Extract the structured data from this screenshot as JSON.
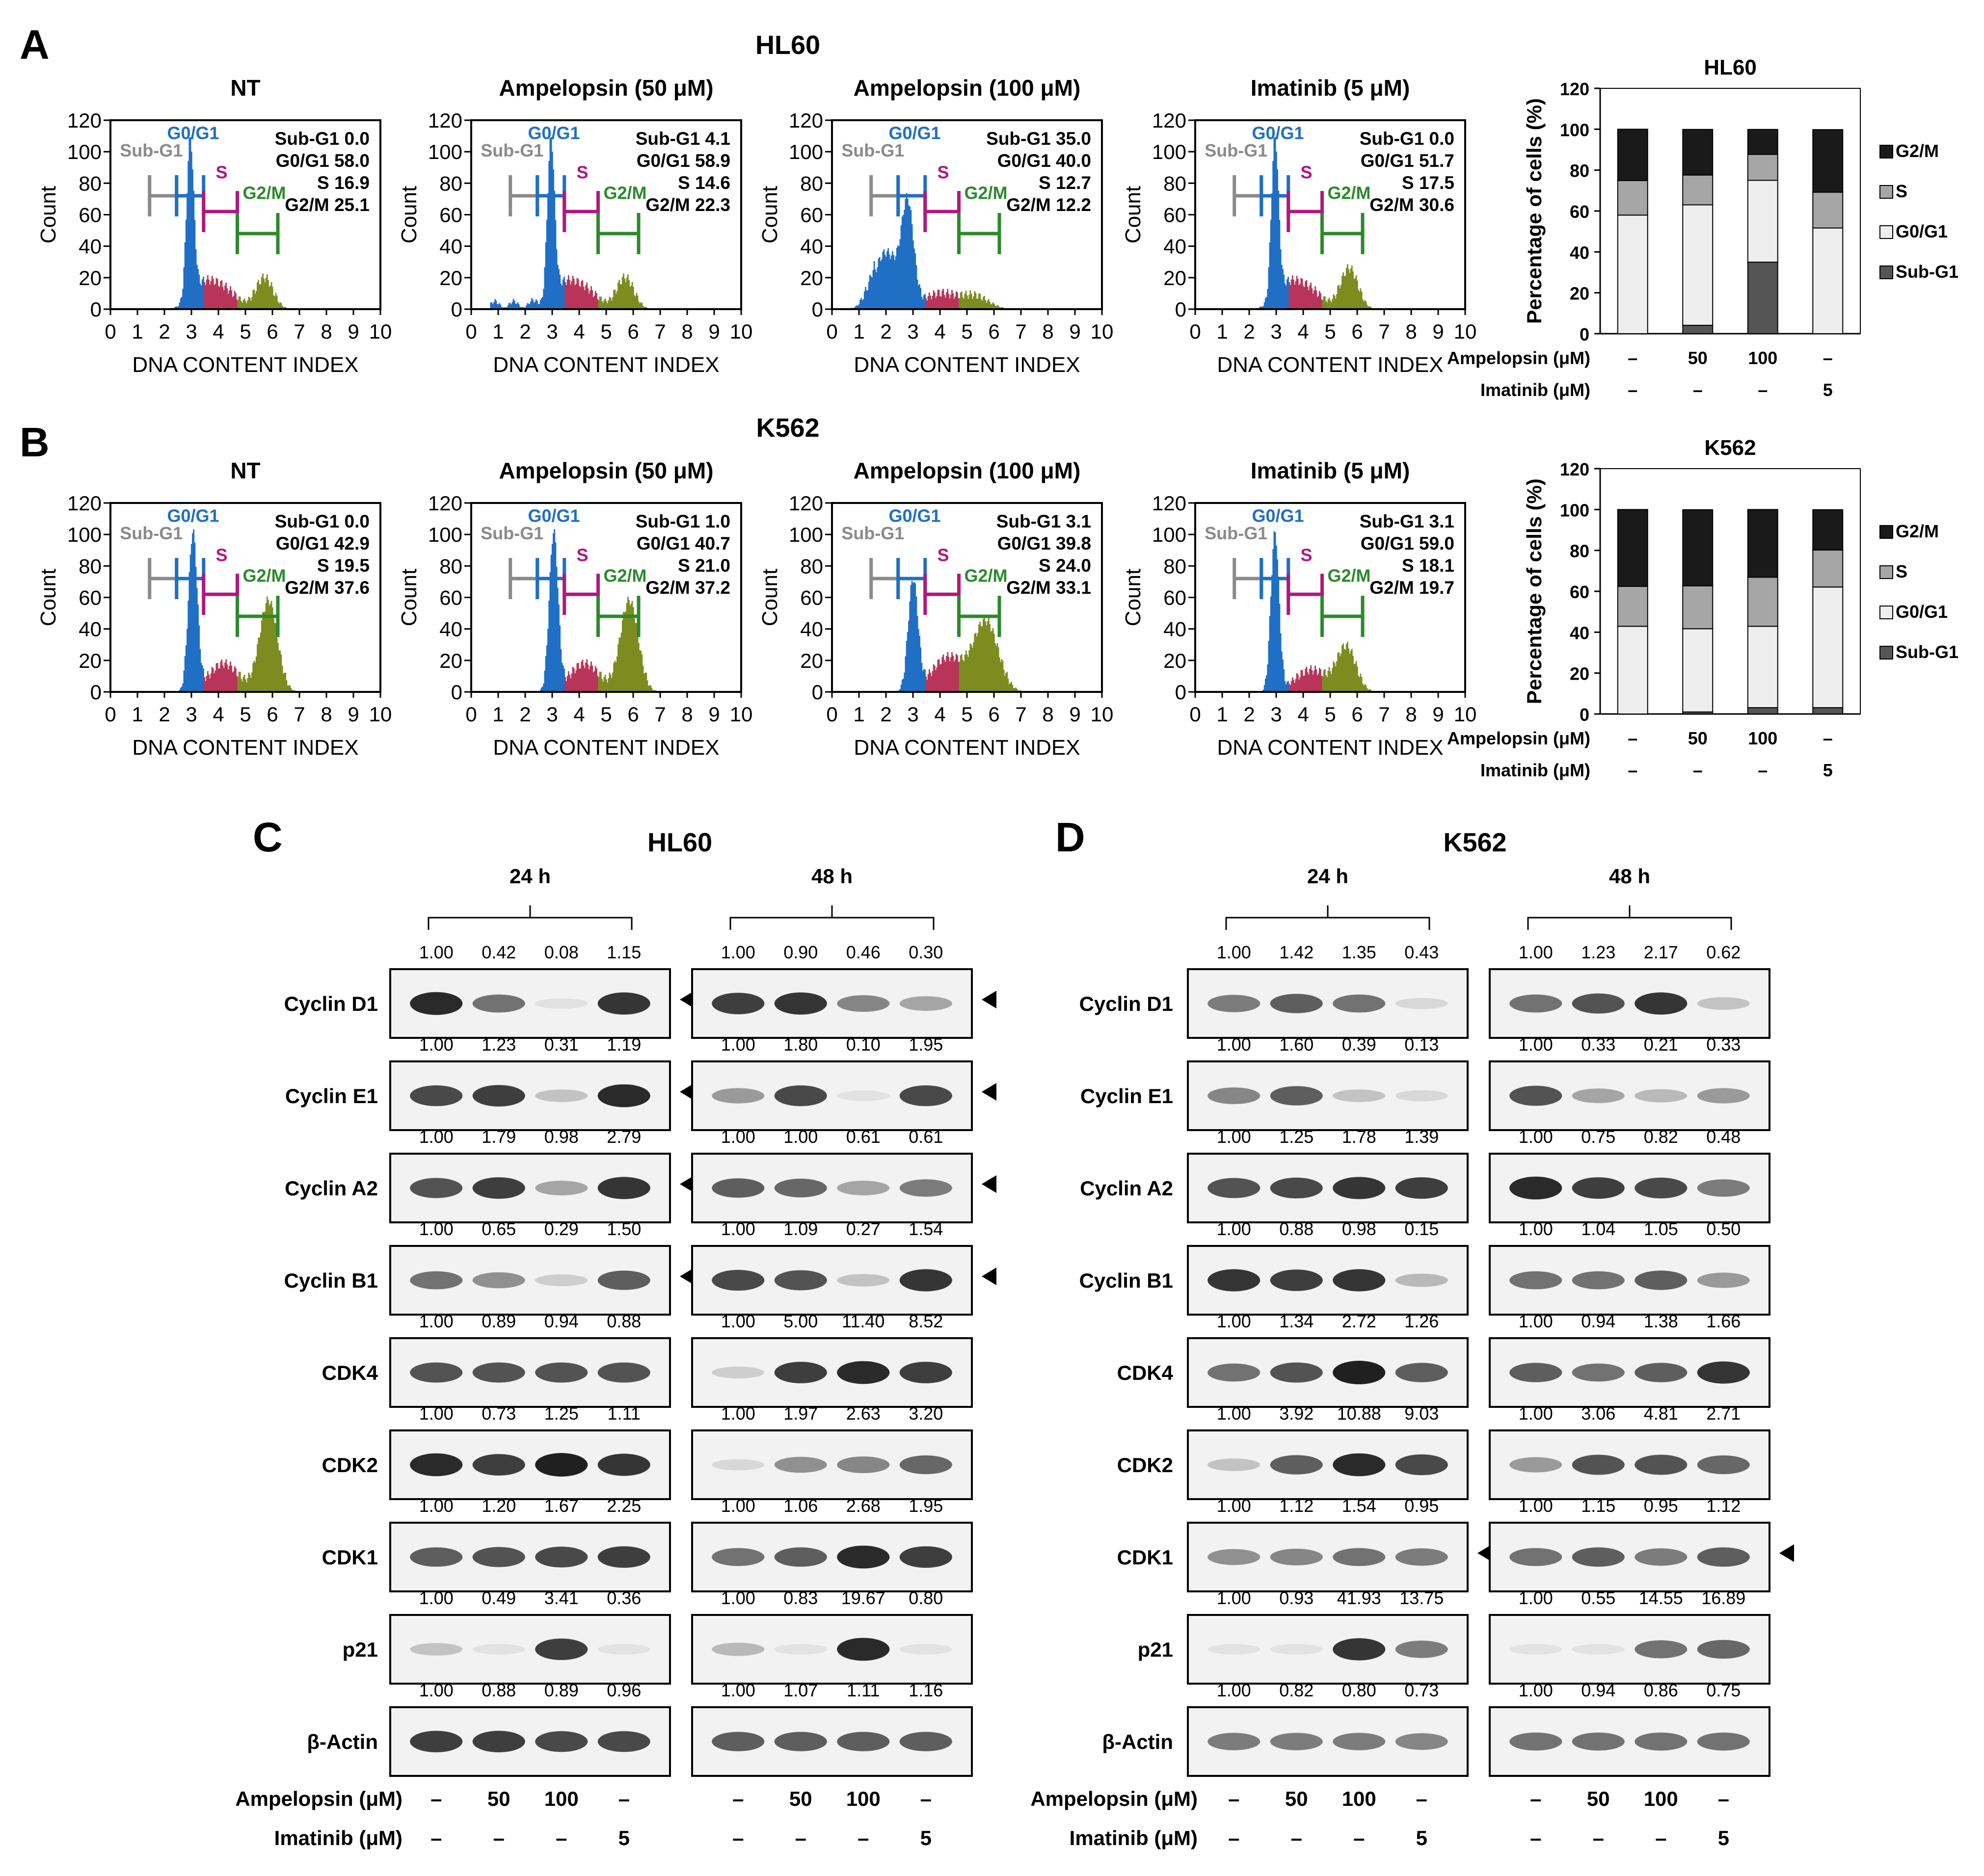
{
  "panel_letters": [
    "A",
    "B",
    "C",
    "D"
  ],
  "flow": {
    "rows": [
      {
        "cell_line": "HL60",
        "panels": [
          {
            "title": "NT",
            "stats": [
              "Sub-G1 0.0",
              "G0/G1 58.0",
              "S 16.9",
              "G2/M 25.1"
            ],
            "profile": "nt"
          },
          {
            "title": "Ampelopsin (50 μM)",
            "stats": [
              "Sub-G1 4.1",
              "G0/G1 58.9",
              "S 14.6",
              "G2/M 22.3"
            ],
            "profile": "amp50"
          },
          {
            "title": "Ampelopsin (100 μM)",
            "stats": [
              "Sub-G1 35.0",
              "G0/G1 40.0",
              "S 12.7",
              "G2/M 12.2"
            ],
            "profile": "amp100"
          },
          {
            "title": "Imatinib (5 μM)",
            "stats": [
              "Sub-G1 0.0",
              "G0/G1 51.7",
              "S 17.5",
              "G2/M 30.6"
            ],
            "profile": "ima"
          }
        ]
      },
      {
        "cell_line": "K562",
        "panels": [
          {
            "title": "NT",
            "stats": [
              "Sub-G1 0.0",
              "G0/G1 42.9",
              "S 19.5",
              "G2/M 37.6"
            ],
            "profile": "k_nt"
          },
          {
            "title": "Ampelopsin (50 μM)",
            "stats": [
              "Sub-G1 1.0",
              "G0/G1 40.7",
              "S 21.0",
              "G2/M 37.2"
            ],
            "profile": "k_nt"
          },
          {
            "title": "Ampelopsin (100 μM)",
            "stats": [
              "Sub-G1 3.1",
              "G0/G1 39.8",
              "S 24.0",
              "G2/M 33.1"
            ],
            "profile": "k_100"
          },
          {
            "title": "Imatinib (5 μM)",
            "stats": [
              "Sub-G1 3.1",
              "G0/G1 59.0",
              "S 18.1",
              "G2/M 19.7"
            ],
            "profile": "k_ima"
          }
        ]
      }
    ],
    "gate_labels": {
      "subg1": "Sub-G1",
      "g0g1": "G0/G1",
      "s": "S",
      "g2m": "G2/M"
    },
    "xlabel": "DNA CONTENT INDEX",
    "ylabel": "Count",
    "xticks": [
      "0",
      "1",
      "2",
      "3",
      "4",
      "5",
      "6",
      "7",
      "8",
      "9",
      "10"
    ],
    "yticks": [
      "0",
      "20",
      "40",
      "60",
      "80",
      "100",
      "120"
    ],
    "colors": {
      "g0g1": "#1f6fc5",
      "s": "#b8345a",
      "g2m": "#7d8c1e",
      "subg1": "#1f6fc5",
      "gate_sub": "#8a8a8a",
      "gate_g0": "#1f6fc5",
      "gate_s": "#b0187e",
      "gate_g2": "#2b8a2b"
    }
  },
  "chart_data": [
    {
      "type": "bar",
      "stacked": true,
      "title": "HL60",
      "ylabel": "Percentage of cells (%)",
      "ylim": [
        0,
        120
      ],
      "yticks": [
        "0",
        "20",
        "40",
        "60",
        "80",
        "100",
        "120"
      ],
      "categories": [
        "NT",
        "Ampelopsin 50",
        "Ampelopsin 100",
        "Imatinib 5"
      ],
      "series": [
        {
          "name": "Sub-G1",
          "values": [
            0.0,
            4.1,
            35.0,
            0.0
          ]
        },
        {
          "name": "G0/G1",
          "values": [
            58.0,
            58.9,
            40.0,
            51.7
          ]
        },
        {
          "name": "S",
          "values": [
            16.9,
            14.6,
            12.7,
            17.5
          ]
        },
        {
          "name": "G2/M",
          "values": [
            25.1,
            22.3,
            12.2,
            30.6
          ]
        }
      ],
      "legend": [
        "G2/M",
        "S",
        "G0/G1",
        "Sub-G1"
      ],
      "treatment_rows": [
        {
          "label": "Ampelopsin (μM)",
          "values": [
            "–",
            "50",
            "100",
            "–"
          ]
        },
        {
          "label": "Imatinib (μM)",
          "values": [
            "–",
            "–",
            "–",
            "5"
          ]
        }
      ]
    },
    {
      "type": "bar",
      "stacked": true,
      "title": "K562",
      "ylabel": "Percentage of cells (%)",
      "ylim": [
        0,
        120
      ],
      "yticks": [
        "0",
        "20",
        "40",
        "60",
        "80",
        "100",
        "120"
      ],
      "categories": [
        "NT",
        "Ampelopsin 50",
        "Ampelopsin 100",
        "Imatinib 5"
      ],
      "series": [
        {
          "name": "Sub-G1",
          "values": [
            0.0,
            1.0,
            3.1,
            3.1
          ]
        },
        {
          "name": "G0/G1",
          "values": [
            42.9,
            40.7,
            39.8,
            59.0
          ]
        },
        {
          "name": "S",
          "values": [
            19.5,
            21.0,
            24.0,
            18.1
          ]
        },
        {
          "name": "G2/M",
          "values": [
            37.6,
            37.2,
            33.1,
            19.7
          ]
        }
      ],
      "legend": [
        "G2/M",
        "S",
        "G0/G1",
        "Sub-G1"
      ],
      "treatment_rows": [
        {
          "label": "Ampelopsin (μM)",
          "values": [
            "–",
            "50",
            "100",
            "–"
          ]
        },
        {
          "label": "Imatinib (μM)",
          "values": [
            "–",
            "–",
            "–",
            "5"
          ]
        }
      ]
    }
  ],
  "blots": [
    {
      "cell_line": "HL60",
      "time_labels": [
        "24 h",
        "48 h"
      ],
      "proteins": [
        "Cyclin D1",
        "Cyclin E1",
        "Cyclin A2",
        "Cyclin B1",
        "CDK4",
        "CDK2",
        "CDK1",
        "p21",
        "β-Actin"
      ],
      "values_24": [
        [
          "1.00",
          "0.42",
          "0.08",
          "1.15"
        ],
        [
          "1.00",
          "1.23",
          "0.31",
          "1.19"
        ],
        [
          "1.00",
          "1.79",
          "0.98",
          "2.79"
        ],
        [
          "1.00",
          "0.65",
          "0.29",
          "1.50"
        ],
        [
          "1.00",
          "0.89",
          "0.94",
          "0.88"
        ],
        [
          "1.00",
          "0.73",
          "1.25",
          "1.11"
        ],
        [
          "1.00",
          "1.20",
          "1.67",
          "2.25"
        ],
        [
          "1.00",
          "0.49",
          "3.41",
          "0.36"
        ],
        [
          "1.00",
          "0.88",
          "0.89",
          "0.96"
        ]
      ],
      "values_48": [
        [
          "1.00",
          "0.90",
          "0.46",
          "0.30"
        ],
        [
          "1.00",
          "1.80",
          "0.10",
          "1.95"
        ],
        [
          "1.00",
          "1.00",
          "0.61",
          "0.61"
        ],
        [
          "1.00",
          "1.09",
          "0.27",
          "1.54"
        ],
        [
          "1.00",
          "5.00",
          "11.40",
          "8.52"
        ],
        [
          "1.00",
          "1.97",
          "2.63",
          "3.20"
        ],
        [
          "1.00",
          "1.06",
          "2.68",
          "1.95"
        ],
        [
          "1.00",
          "0.83",
          "19.67",
          "0.80"
        ],
        [
          "1.00",
          "1.07",
          "1.11",
          "1.16"
        ]
      ],
      "band_intensity_24": [
        [
          0.95,
          0.6,
          0.05,
          0.9
        ],
        [
          0.8,
          0.85,
          0.2,
          0.95
        ],
        [
          0.75,
          0.85,
          0.35,
          0.9
        ],
        [
          0.6,
          0.45,
          0.15,
          0.7
        ],
        [
          0.75,
          0.75,
          0.75,
          0.75
        ],
        [
          0.95,
          0.85,
          1.0,
          0.9
        ],
        [
          0.7,
          0.75,
          0.8,
          0.85
        ],
        [
          0.2,
          0.05,
          0.85,
          0.05
        ],
        [
          0.85,
          0.85,
          0.8,
          0.8
        ]
      ],
      "band_intensity_48": [
        [
          0.85,
          0.9,
          0.5,
          0.35
        ],
        [
          0.4,
          0.8,
          0.05,
          0.8
        ],
        [
          0.7,
          0.65,
          0.35,
          0.55
        ],
        [
          0.8,
          0.75,
          0.2,
          0.9
        ],
        [
          0.15,
          0.85,
          0.95,
          0.85
        ],
        [
          0.1,
          0.45,
          0.5,
          0.65
        ],
        [
          0.6,
          0.7,
          0.95,
          0.85
        ],
        [
          0.25,
          0.05,
          0.95,
          0.05
        ],
        [
          0.7,
          0.7,
          0.7,
          0.7
        ]
      ],
      "arrow_rows": [
        0,
        1,
        2,
        3
      ],
      "treatment_rows": [
        {
          "label": "Ampelopsin (μM)",
          "values": [
            "–",
            "50",
            "100",
            "–",
            "–",
            "50",
            "100",
            "–"
          ]
        },
        {
          "label": "Imatinib (μM)",
          "values": [
            "–",
            "–",
            "–",
            "5",
            "–",
            "–",
            "–",
            "5"
          ]
        }
      ]
    },
    {
      "cell_line": "K562",
      "time_labels": [
        "24 h",
        "48 h"
      ],
      "proteins": [
        "Cyclin D1",
        "Cyclin E1",
        "Cyclin A2",
        "Cyclin B1",
        "CDK4",
        "CDK2",
        "CDK1",
        "p21",
        "β-Actin"
      ],
      "values_24": [
        [
          "1.00",
          "1.42",
          "1.35",
          "0.43"
        ],
        [
          "1.00",
          "1.60",
          "0.39",
          "0.13"
        ],
        [
          "1.00",
          "1.25",
          "1.78",
          "1.39"
        ],
        [
          "1.00",
          "0.88",
          "0.98",
          "0.15"
        ],
        [
          "1.00",
          "1.34",
          "2.72",
          "1.26"
        ],
        [
          "1.00",
          "3.92",
          "10.88",
          "9.03"
        ],
        [
          "1.00",
          "1.12",
          "1.54",
          "0.95"
        ],
        [
          "1.00",
          "0.93",
          "41.93",
          "13.75"
        ],
        [
          "1.00",
          "0.82",
          "0.80",
          "0.73"
        ]
      ],
      "values_48": [
        [
          "1.00",
          "1.23",
          "2.17",
          "0.62"
        ],
        [
          "1.00",
          "0.33",
          "0.21",
          "0.33"
        ],
        [
          "1.00",
          "0.75",
          "0.82",
          "0.48"
        ],
        [
          "1.00",
          "1.04",
          "1.05",
          "0.50"
        ],
        [
          "1.00",
          "0.94",
          "1.38",
          "1.66"
        ],
        [
          "1.00",
          "3.06",
          "4.81",
          "2.71"
        ],
        [
          "1.00",
          "1.15",
          "0.95",
          "1.12"
        ],
        [
          "1.00",
          "0.55",
          "14.55",
          "16.89"
        ],
        [
          "1.00",
          "0.94",
          "0.86",
          "0.75"
        ]
      ],
      "band_intensity_24": [
        [
          0.55,
          0.7,
          0.6,
          0.1
        ],
        [
          0.5,
          0.7,
          0.2,
          0.1
        ],
        [
          0.75,
          0.8,
          0.9,
          0.85
        ],
        [
          0.9,
          0.85,
          0.9,
          0.25
        ],
        [
          0.6,
          0.75,
          1.0,
          0.7
        ],
        [
          0.2,
          0.7,
          0.95,
          0.8
        ],
        [
          0.45,
          0.5,
          0.6,
          0.55
        ],
        [
          0.05,
          0.05,
          0.9,
          0.55
        ],
        [
          0.55,
          0.55,
          0.55,
          0.5
        ]
      ],
      "band_intensity_48": [
        [
          0.6,
          0.75,
          0.9,
          0.2
        ],
        [
          0.75,
          0.35,
          0.25,
          0.4
        ],
        [
          0.95,
          0.85,
          0.8,
          0.55
        ],
        [
          0.6,
          0.6,
          0.7,
          0.4
        ],
        [
          0.7,
          0.6,
          0.7,
          0.9
        ],
        [
          0.4,
          0.75,
          0.75,
          0.65
        ],
        [
          0.6,
          0.7,
          0.55,
          0.7
        ],
        [
          0.05,
          0.05,
          0.6,
          0.65
        ],
        [
          0.6,
          0.6,
          0.6,
          0.6
        ]
      ],
      "arrow_rows": [
        6
      ],
      "treatment_rows": [
        {
          "label": "Ampelopsin (μM)",
          "values": [
            "–",
            "50",
            "100",
            "–",
            "–",
            "50",
            "100",
            "–"
          ]
        },
        {
          "label": "Imatinib (μM)",
          "values": [
            "–",
            "–",
            "–",
            "5",
            "–",
            "–",
            "–",
            "5"
          ]
        }
      ]
    }
  ],
  "bar_colors": {
    "Sub-G1": "#555555",
    "G0/G1": "#eeeeee",
    "S": "#a6a6a6",
    "G2/M": "#1a1a1a"
  }
}
